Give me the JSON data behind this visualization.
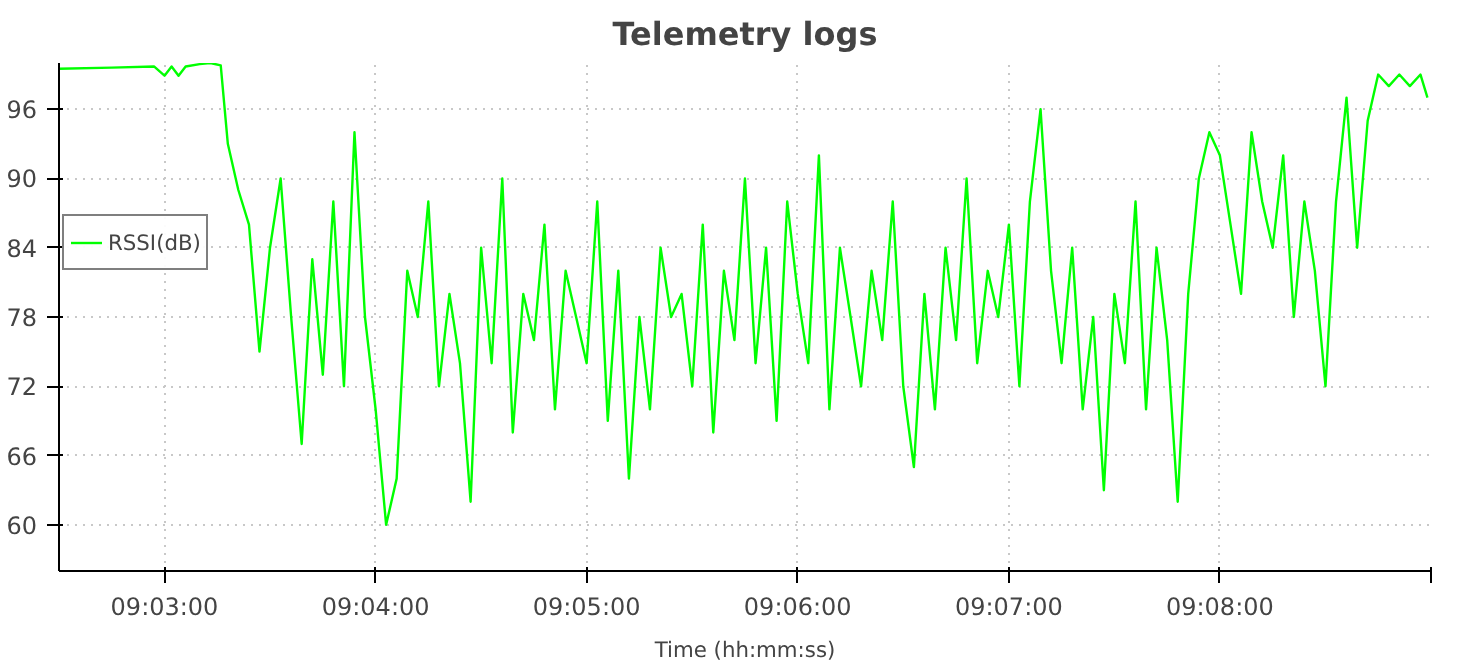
{
  "chart_data": {
    "type": "line",
    "title": "Telemetry logs",
    "xlabel": "Time (hh:mm:ss)",
    "xlim": [
      9.04167,
      9.15
    ],
    "ylim": [
      56,
      100
    ],
    "xticks": [
      {
        "value": 9.05,
        "label": "09:03:00"
      },
      {
        "value": 9.06667,
        "label": "09:04:00"
      },
      {
        "value": 9.08333,
        "label": "09:05:00"
      },
      {
        "value": 9.1,
        "label": "09:06:00"
      },
      {
        "value": 9.11667,
        "label": "09:07:00"
      },
      {
        "value": 9.13333,
        "label": "09:08:00"
      },
      {
        "value": 9.15,
        "label": null
      }
    ],
    "yticks": [
      60,
      66,
      72,
      78,
      84,
      90,
      96
    ],
    "grid": true,
    "legend": "top left",
    "marker": "none",
    "line_style": "solid",
    "series": [
      {
        "name": "RSSI(dB)",
        "color": "#00ff00",
        "x": [
          9.04167,
          9.04583,
          9.04917,
          9.05,
          9.05056,
          9.05111,
          9.05167,
          9.05278,
          9.05361,
          9.05444,
          9.055,
          9.05583,
          9.05667,
          9.0575,
          9.05833,
          9.05917,
          9.06,
          9.06083,
          9.06167,
          9.0625,
          9.06333,
          9.06417,
          9.065,
          9.06583,
          9.06667,
          9.0675,
          9.06833,
          9.06917,
          9.07,
          9.07083,
          9.07167,
          9.0725,
          9.07333,
          9.07417,
          9.075,
          9.07583,
          9.07667,
          9.0775,
          9.07833,
          9.07917,
          9.08,
          9.08083,
          9.08167,
          9.0825,
          9.08333,
          9.08417,
          9.085,
          9.08583,
          9.08667,
          9.0875,
          9.08833,
          9.08917,
          9.09,
          9.09083,
          9.09167,
          9.0925,
          9.09333,
          9.09417,
          9.095,
          9.09583,
          9.09667,
          9.0975,
          9.09833,
          9.09917,
          9.1,
          9.10083,
          9.10167,
          9.1025,
          9.10333,
          9.10417,
          9.105,
          9.10583,
          9.10667,
          9.1075,
          9.10833,
          9.10917,
          9.11,
          9.11083,
          9.11167,
          9.1125,
          9.11333,
          9.11417,
          9.115,
          9.11583,
          9.11667,
          9.1175,
          9.11833,
          9.11917,
          9.12,
          9.12083,
          9.12167,
          9.1225,
          9.12333,
          9.12417,
          9.125,
          9.12583,
          9.12667,
          9.1275,
          9.12833,
          9.12917,
          9.13,
          9.13083,
          9.13167,
          9.1325,
          9.13333,
          9.13417,
          9.135,
          9.13583,
          9.13667,
          9.1375,
          9.13833,
          9.13917,
          9.14,
          9.14083,
          9.14167,
          9.1425,
          9.14333,
          9.14417,
          9.145,
          9.14583,
          9.14667,
          9.1475,
          9.14833,
          9.14917,
          9.14972
        ],
        "values": [
          99.5,
          99.6,
          99.7,
          98.9,
          99.7,
          98.9,
          99.7,
          99.9,
          100,
          99.8,
          93,
          89,
          86,
          75,
          84,
          90,
          78,
          67,
          83,
          73,
          88,
          72,
          94,
          78,
          70,
          60,
          64,
          82,
          78,
          88,
          72,
          80,
          74,
          62,
          84,
          74,
          90,
          68,
          80,
          76,
          86,
          70,
          82,
          78,
          74,
          88,
          69,
          82,
          64,
          78,
          70,
          84,
          78,
          80,
          72,
          86,
          68,
          82,
          76,
          90,
          74,
          84,
          69,
          88,
          80,
          74,
          92,
          70,
          84,
          78,
          72,
          82,
          76,
          88,
          72,
          65,
          80,
          70,
          84,
          76,
          90,
          74,
          82,
          78,
          86,
          72,
          88,
          96,
          82,
          74,
          84,
          70,
          78,
          63,
          80,
          74,
          88,
          70,
          84,
          76,
          62,
          80,
          90,
          94,
          92,
          86,
          80,
          94,
          88,
          84,
          92,
          78,
          88,
          82,
          72,
          88,
          97,
          84,
          95,
          99,
          98,
          99,
          98,
          99,
          97
        ]
      }
    ]
  }
}
